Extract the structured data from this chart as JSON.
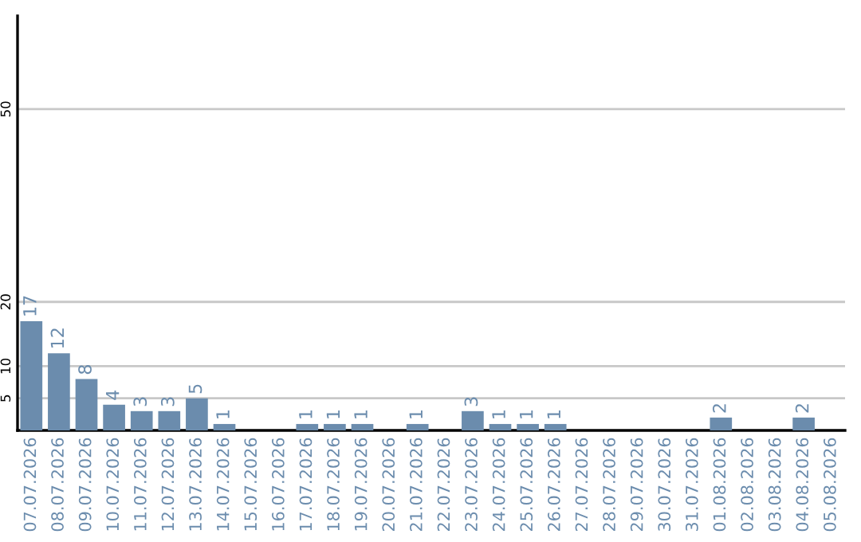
{
  "chart_data": {
    "type": "bar",
    "categories": [
      "07.07.2026",
      "08.07.2026",
      "09.07.2026",
      "10.07.2026",
      "11.07.2026",
      "12.07.2026",
      "13.07.2026",
      "14.07.2026",
      "15.07.2026",
      "16.07.2026",
      "17.07.2026",
      "18.07.2026",
      "19.07.2026",
      "20.07.2026",
      "21.07.2026",
      "22.07.2026",
      "23.07.2026",
      "24.07.2026",
      "25.07.2026",
      "26.07.2026",
      "27.07.2026",
      "28.07.2026",
      "29.07.2026",
      "30.07.2026",
      "31.07.2026",
      "01.08.2026",
      "02.08.2026",
      "03.08.2026",
      "04.08.2026",
      "05.08.2026"
    ],
    "values": [
      17,
      12,
      8,
      4,
      3,
      3,
      5,
      1,
      0,
      0,
      1,
      1,
      1,
      0,
      1,
      0,
      3,
      1,
      1,
      1,
      0,
      0,
      0,
      0,
      0,
      2,
      0,
      0,
      2,
      0
    ],
    "value_labels": [
      "17",
      "12",
      "8",
      "4",
      "3",
      "3",
      "5",
      "1",
      null,
      null,
      "1",
      "1",
      "1",
      null,
      "1",
      null,
      "3",
      "1",
      "1",
      "1",
      null,
      null,
      null,
      null,
      null,
      "2",
      null,
      null,
      "2",
      null
    ],
    "color": "#6b8cad",
    "ylim": [
      0,
      64.5
    ],
    "yticks": [
      5,
      10,
      20,
      50
    ],
    "grid": "y"
  }
}
